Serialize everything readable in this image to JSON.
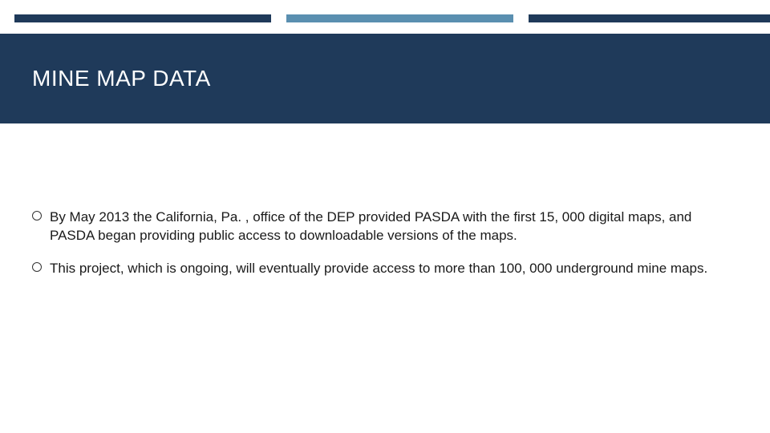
{
  "topStripe": {
    "segments": [
      {
        "color": "#1f3a5a",
        "widthPct": 34
      },
      {
        "color": "#ffffff",
        "widthPct": 2
      },
      {
        "color": "#5a8fb0",
        "widthPct": 30
      },
      {
        "color": "#ffffff",
        "widthPct": 2
      },
      {
        "color": "#1f3a5a",
        "widthPct": 32
      }
    ]
  },
  "header": {
    "title": "MINE MAP DATA",
    "backgroundColor": "#1f3a5a",
    "textColor": "#ffffff",
    "fontSizePx": 28
  },
  "content": {
    "bulletColor": "#333333",
    "textColor": "#1a1a1a",
    "fontSizePx": 17,
    "items": [
      {
        "text": "By May 2013 the California, Pa. , office of the DEP provided PASDA with the first 15, 000 digital maps, and PASDA began providing public access to downloadable versions of the maps."
      },
      {
        "text": "This project, which is ongoing, will eventually provide access to more than 100, 000 underground mine maps."
      }
    ]
  }
}
